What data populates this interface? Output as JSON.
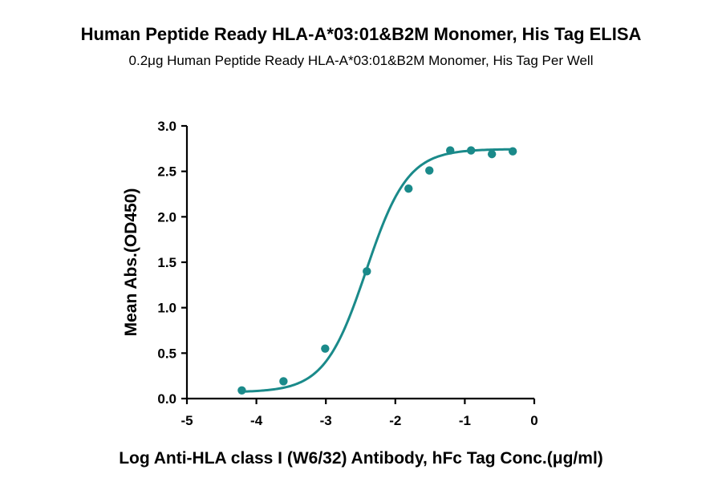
{
  "chart_data": {
    "type": "scatter",
    "title": "Human Peptide Ready HLA-A*03:01&B2M Monomer, His Tag ELISA",
    "subtitle": "0.2μg Human Peptide Ready HLA-A*03:01&B2M Monomer, His Tag Per Well",
    "xlabel": "Log Anti-HLA class I (W6/32) Antibody, hFc Tag Conc.(μg/ml)",
    "ylabel": "Mean Abs.(OD450)",
    "xlim": [
      -5,
      0
    ],
    "ylim": [
      0,
      3
    ],
    "x_ticks": [
      -5,
      -4,
      -3,
      -2,
      -1,
      0
    ],
    "x_tick_labels": [
      "-5",
      "-4",
      "-3",
      "-2",
      "-1",
      "0"
    ],
    "y_ticks": [
      0,
      0.5,
      1,
      1.5,
      2,
      2.5,
      3
    ],
    "y_tick_labels": [
      "0.0",
      "0.5",
      "1.0",
      "1.5",
      "2.0",
      "2.5",
      "3.0"
    ],
    "grid": false,
    "color": "#1a8a8a",
    "series": [
      {
        "x": [
          -4.21,
          -3.61,
          -3.01,
          -2.41,
          -1.81,
          -1.51,
          -1.21,
          -0.91,
          -0.61,
          -0.31
        ],
        "y": [
          0.09,
          0.19,
          0.55,
          1.4,
          2.31,
          2.51,
          2.73,
          2.73,
          2.69,
          2.72
        ],
        "fit": "four-parameter logistic"
      }
    ]
  }
}
